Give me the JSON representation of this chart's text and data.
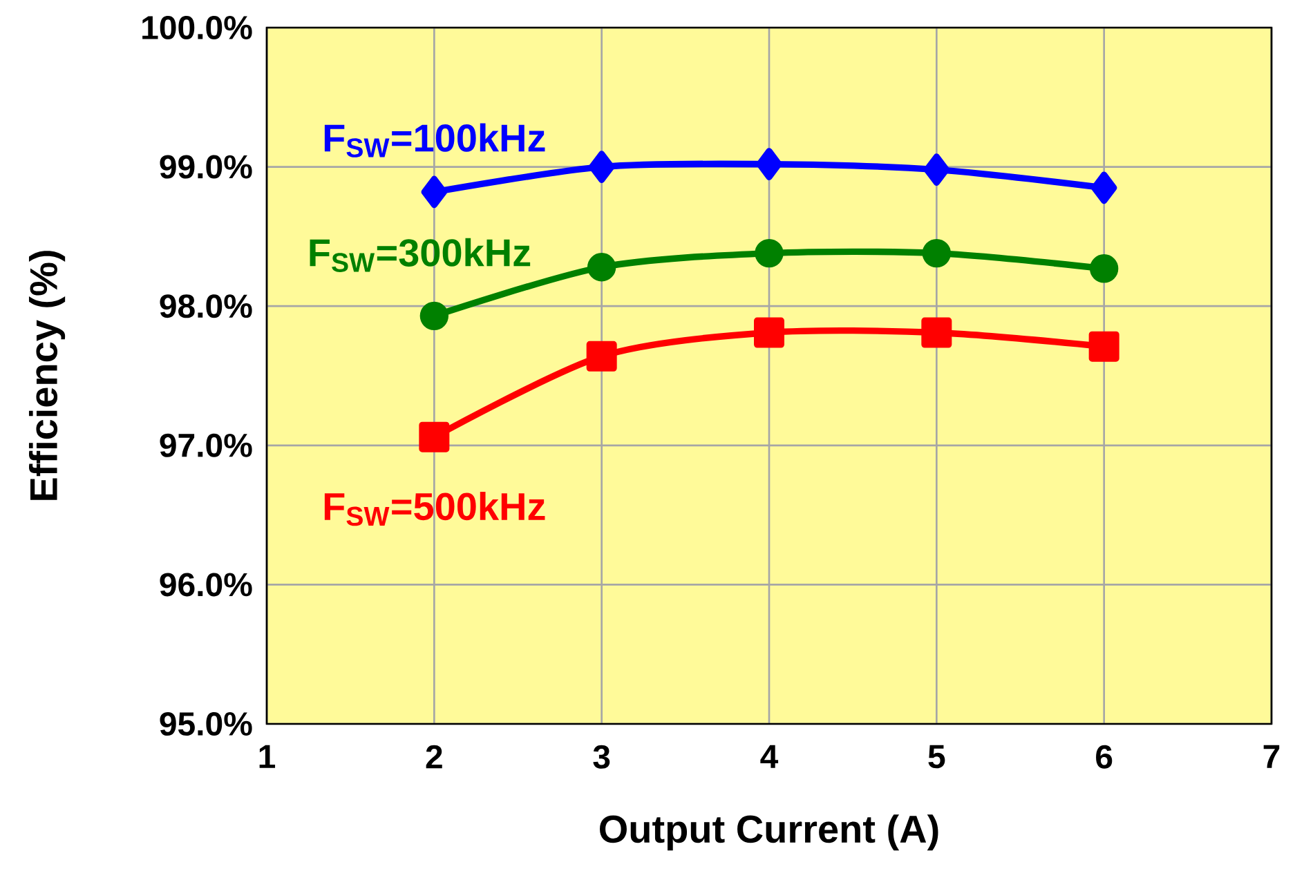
{
  "chart_data": {
    "type": "line",
    "xlabel": "Output Current (A)",
    "ylabel": "Efficiency (%)",
    "x": [
      2,
      3,
      4,
      5,
      6
    ],
    "series": [
      {
        "name": "F$_{SW}$=100kHz",
        "color": "#0000ff",
        "marker": "diamond",
        "values": [
          98.82,
          99.0,
          99.02,
          98.98,
          98.85
        ]
      },
      {
        "name": "F$_{SW}$=300kHz",
        "color": "#008000",
        "marker": "circle",
        "values": [
          97.93,
          98.28,
          98.38,
          98.38,
          98.27
        ]
      },
      {
        "name": "F$_{SW}$=500kHz",
        "color": "#ff0000",
        "marker": "square",
        "values": [
          97.06,
          97.64,
          97.81,
          97.81,
          97.71
        ]
      }
    ],
    "xlim": [
      1,
      7
    ],
    "xticks": [
      1,
      2,
      3,
      4,
      5,
      6,
      7
    ],
    "ylim": [
      95,
      100
    ],
    "yticks": [
      {
        "value": 95,
        "label": "95.0%"
      },
      {
        "value": 96,
        "label": "96.0%"
      },
      {
        "value": 97,
        "label": "97.0%"
      },
      {
        "value": 98,
        "label": "98.0%"
      },
      {
        "value": 99,
        "label": "99.0%"
      },
      {
        "value": 100,
        "label": "100.0%"
      }
    ],
    "grid": true,
    "line_style": "solid"
  }
}
